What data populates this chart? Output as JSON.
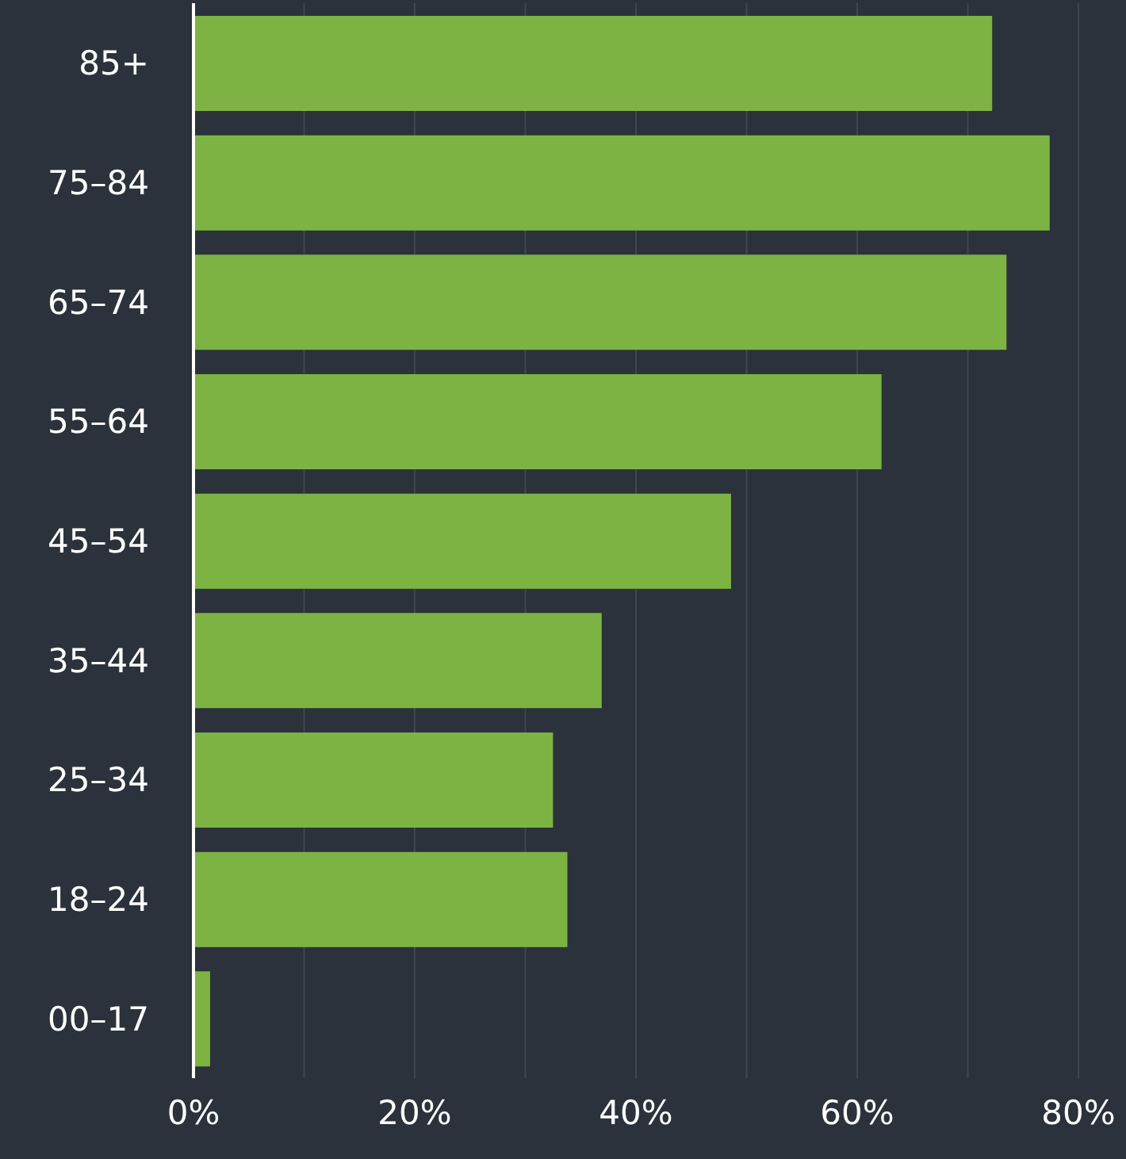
{
  "chart_data": {
    "type": "bar",
    "orientation": "horizontal",
    "categories": [
      "85+",
      "75–84",
      "65–74",
      "55–64",
      "45–54",
      "35–44",
      "25–34",
      "18–24",
      "00–17"
    ],
    "values": [
      72.2,
      77.4,
      73.5,
      62.2,
      48.6,
      36.9,
      32.5,
      33.8,
      1.5
    ],
    "color": "#7db343",
    "xlim": [
      0,
      80
    ],
    "xticks": [
      {
        "value": 0,
        "label": "0%"
      },
      {
        "value": 10,
        "label": null
      },
      {
        "value": 20,
        "label": "20%"
      },
      {
        "value": 30,
        "label": null
      },
      {
        "value": 40,
        "label": "40%"
      },
      {
        "value": 50,
        "label": null
      },
      {
        "value": 60,
        "label": "60%"
      },
      {
        "value": 70,
        "label": null
      },
      {
        "value": 80,
        "label": "80%"
      }
    ],
    "grid": "x",
    "legend": false
  }
}
